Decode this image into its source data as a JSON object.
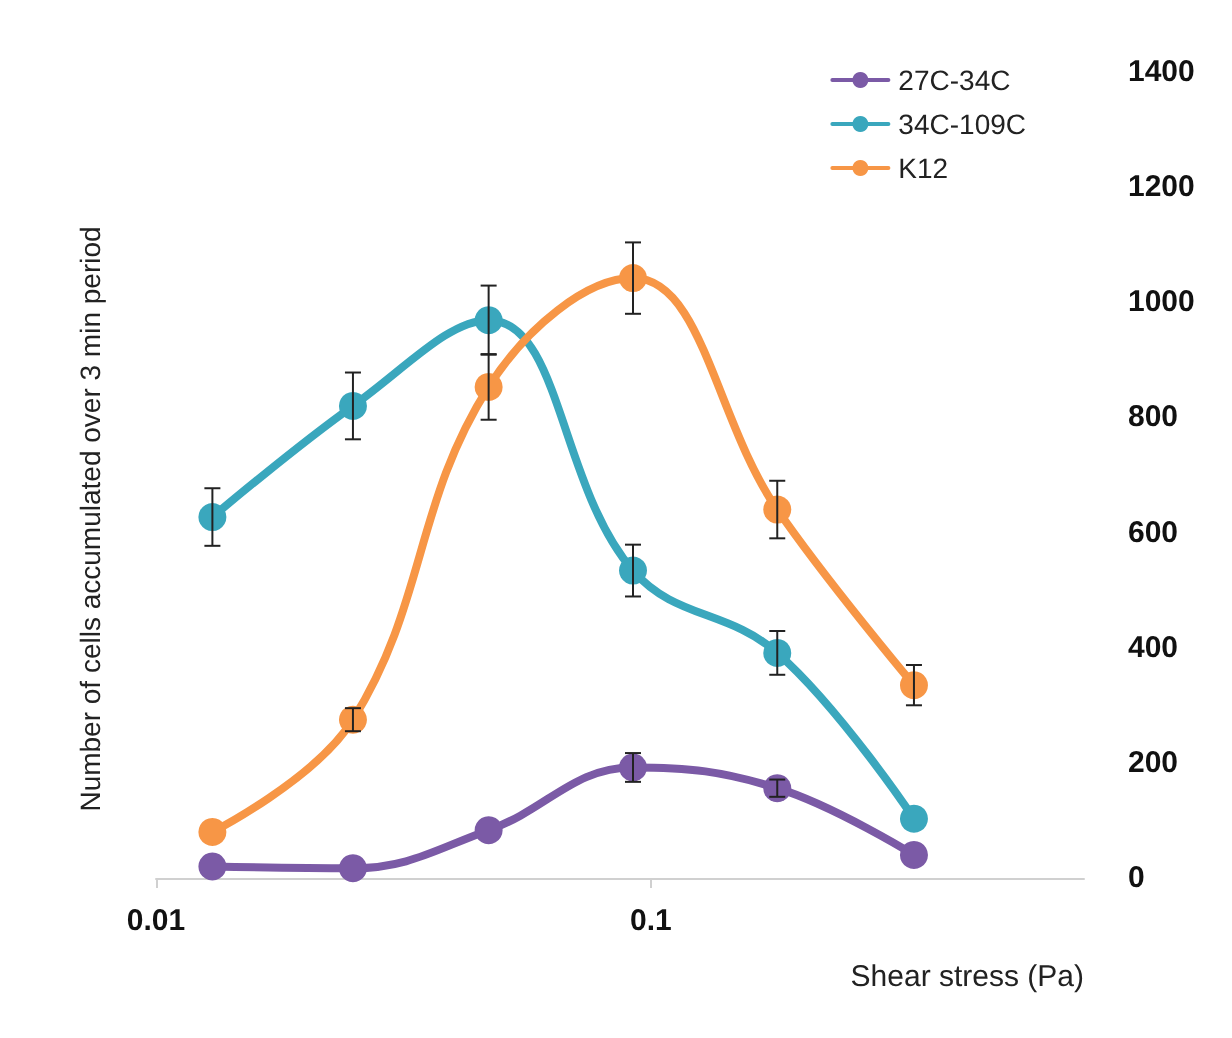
{
  "chart_data": {
    "type": "line",
    "xlabel": "Shear stress (Pa)",
    "ylabel": "Number of cells accumulated over 3 min period",
    "log": "x",
    "xlim": [
      0.01,
      0.75
    ],
    "xticks": [
      0.01,
      0.1
    ],
    "ylim": [
      0,
      1400
    ],
    "yticks": [
      0,
      200,
      400,
      600,
      800,
      1000,
      1200,
      1400
    ],
    "grid": false,
    "legend": "top right",
    "marker": "circle",
    "line_style": "solid",
    "series": [
      {
        "name": "27C-34C",
        "color": "#7b5aa6",
        "x": [
          0.013,
          0.025,
          0.047,
          0.092,
          0.18,
          0.34
        ],
        "values": [
          20,
          17,
          83,
          192,
          156,
          40
        ],
        "errors": [
          null,
          null,
          null,
          25,
          15,
          null
        ]
      },
      {
        "name": "34C-109C",
        "color": "#3aa7bd",
        "x": [
          0.013,
          0.025,
          0.047,
          0.092,
          0.18,
          0.34
        ],
        "values": [
          627,
          820,
          969,
          534,
          391,
          103
        ],
        "errors": [
          50,
          58,
          60,
          45,
          38,
          null
        ]
      },
      {
        "name": "K12",
        "color": "#f79646",
        "x": [
          0.013,
          0.025,
          0.047,
          0.092,
          0.18,
          0.34
        ],
        "values": [
          80,
          275,
          853,
          1042,
          640,
          335
        ],
        "errors": [
          null,
          20,
          57,
          62,
          50,
          35
        ]
      }
    ]
  }
}
